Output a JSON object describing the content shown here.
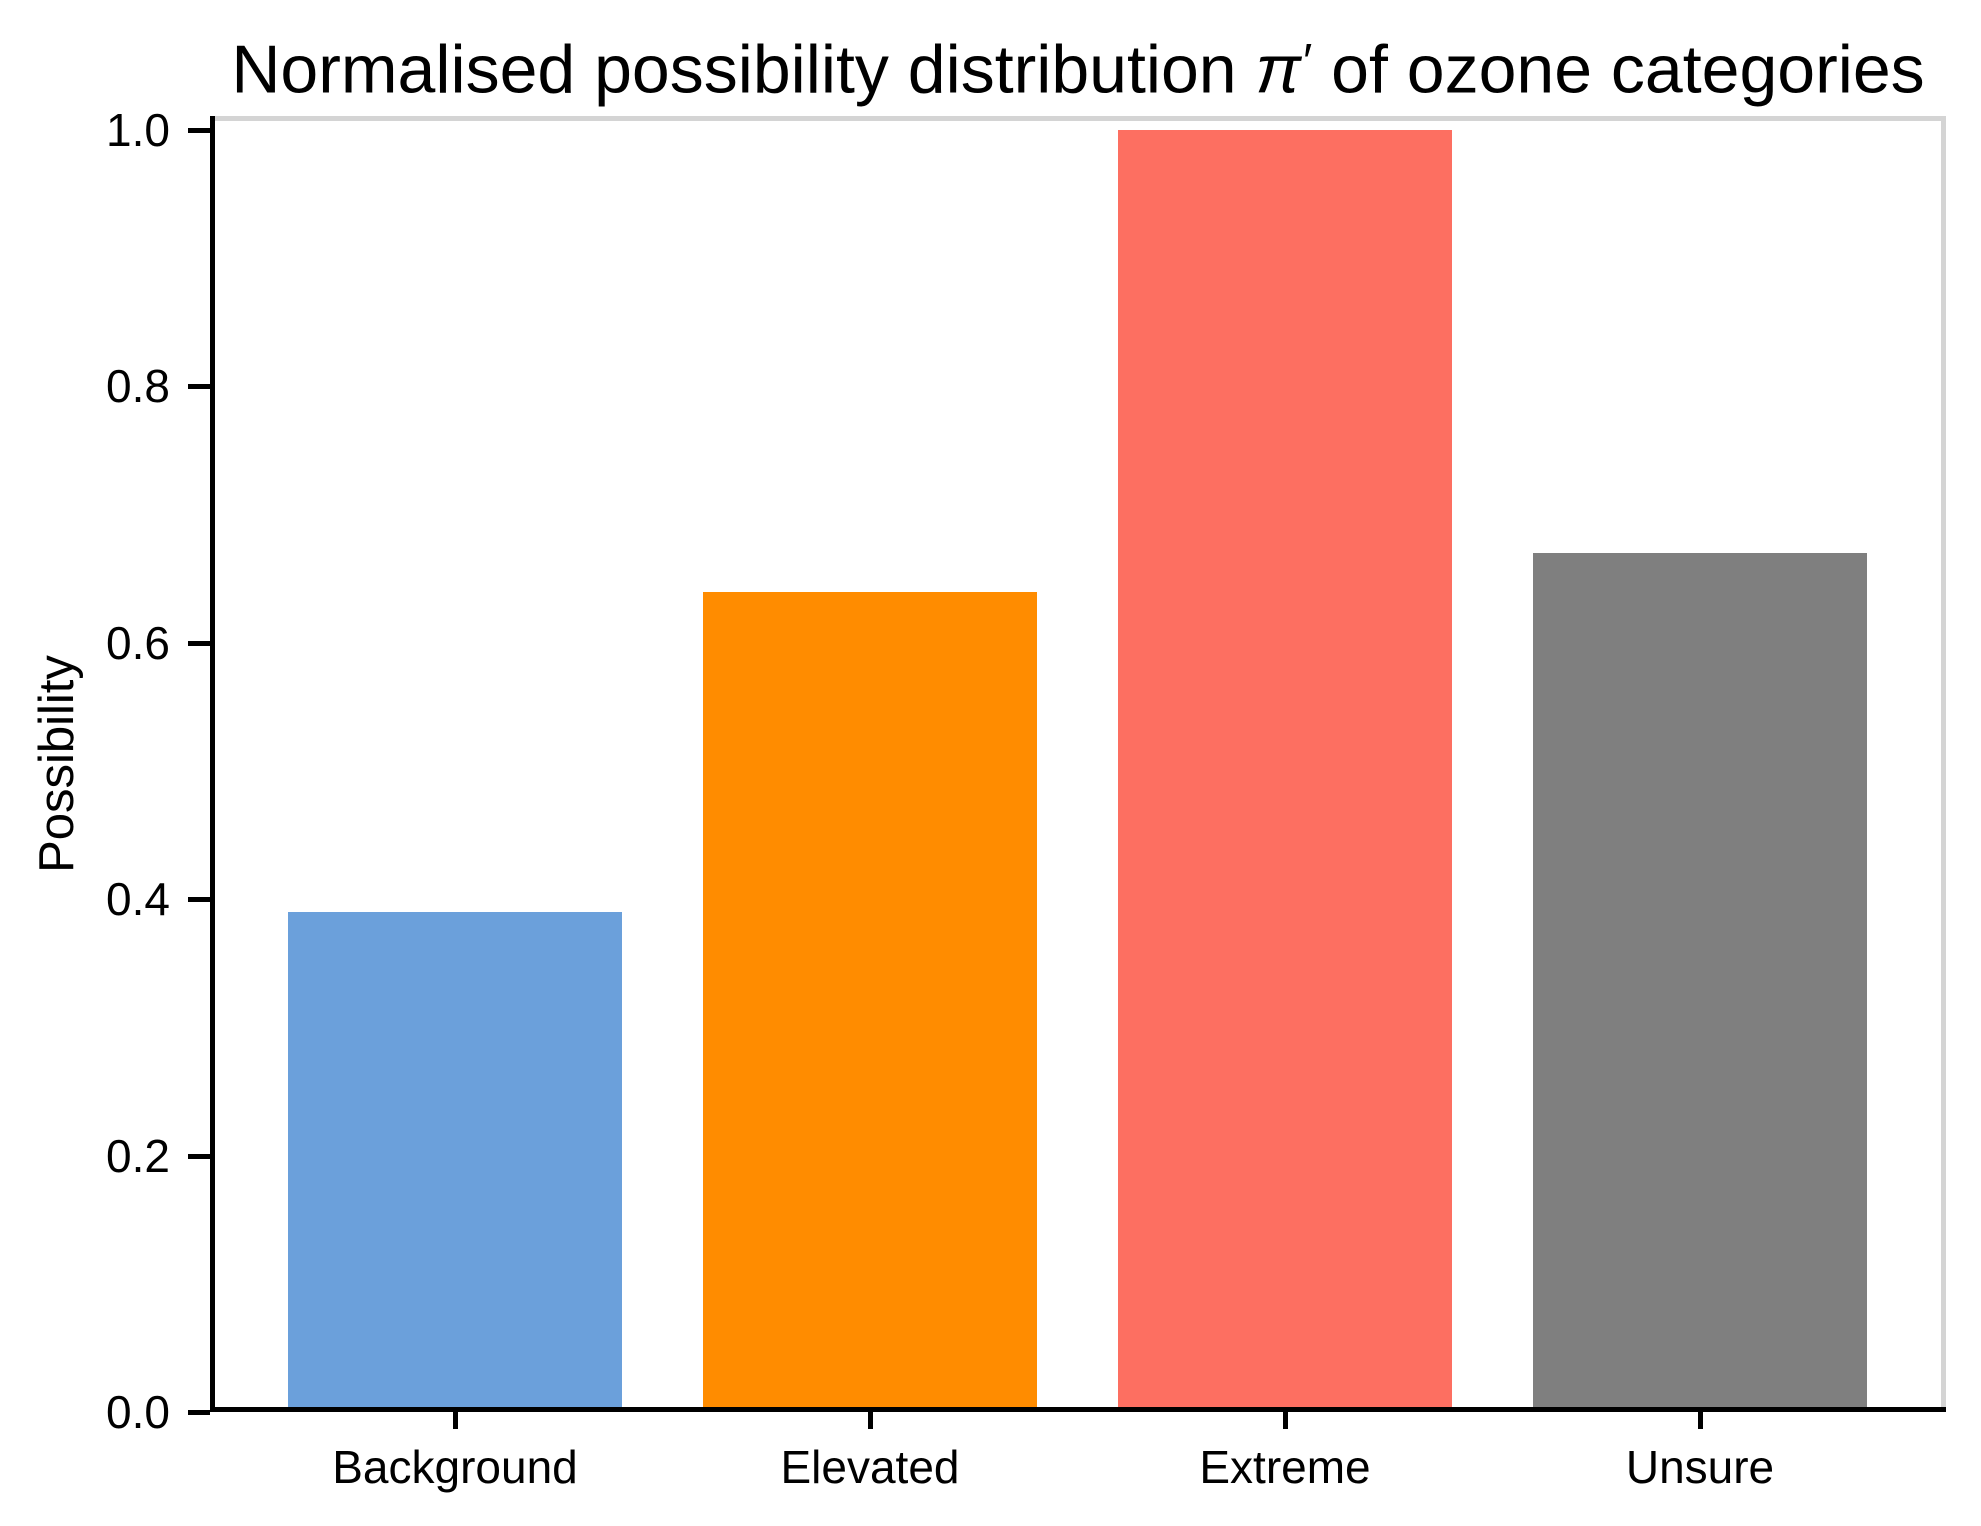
{
  "title": {
    "prefix": "Normalised possibility distribution ",
    "pi": "π",
    "prime": "′",
    "suffix": " of ozone categories"
  },
  "chart_data": {
    "type": "bar",
    "title": "Normalised possibility distribution π′ of ozone categories",
    "categories": [
      "Background",
      "Elevated",
      "Extreme",
      "Unsure"
    ],
    "values": [
      0.39,
      0.64,
      1.0,
      0.67
    ],
    "bar_colors": [
      "#6BA0DB",
      "#FF8C00",
      "#FD6F61",
      "#7F7F7F"
    ],
    "xlabel": "",
    "ylabel": "Possibility",
    "ylim": [
      0.0,
      1.0
    ],
    "yticks": [
      0.0,
      0.2,
      0.4,
      0.6,
      0.8,
      1.0
    ],
    "ytick_labels": [
      "0.0",
      "0.2",
      "0.4",
      "0.6",
      "0.8",
      "1.0"
    ],
    "grid": false,
    "legend": "none",
    "bar_width_fraction": 0.8,
    "axis_colors": {
      "left_bottom_spines": "#000000",
      "top_right_spines": "#d4d4d4"
    }
  }
}
